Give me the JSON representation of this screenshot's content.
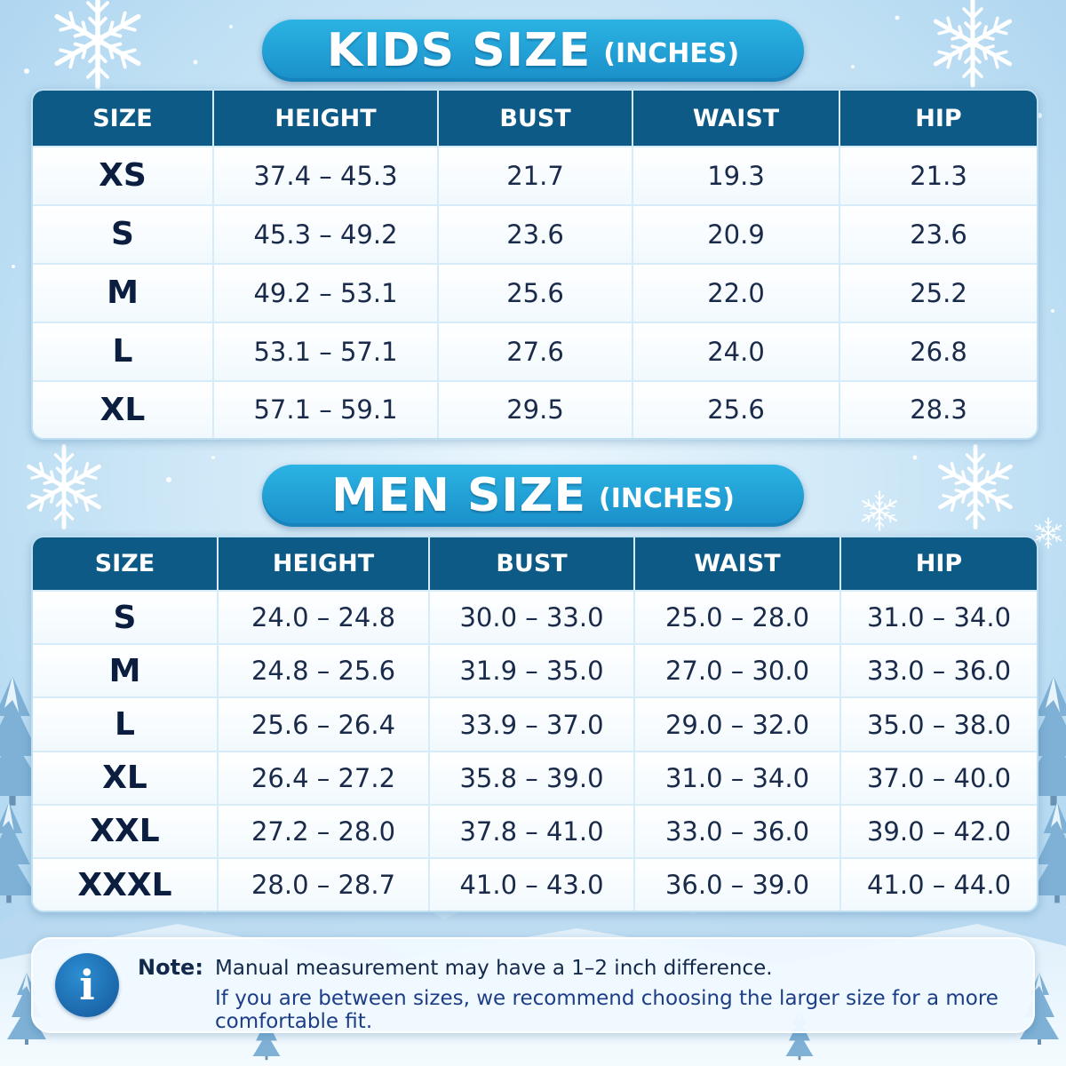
{
  "kids": {
    "title": "KIDS SIZE",
    "unit": "(INCHES)",
    "headers": [
      "SIZE",
      "HEIGHT",
      "BUST",
      "WAIST",
      "HIP"
    ],
    "rows": [
      [
        "XS",
        "37.4 – 45.3",
        "21.7",
        "19.3",
        "21.3"
      ],
      [
        "S",
        "45.3 – 49.2",
        "23.6",
        "20.9",
        "23.6"
      ],
      [
        "M",
        "49.2 – 53.1",
        "25.6",
        "22.0",
        "25.2"
      ],
      [
        "L",
        "53.1 – 57.1",
        "27.6",
        "24.0",
        "26.8"
      ],
      [
        "XL",
        "57.1 – 59.1",
        "29.5",
        "25.6",
        "28.3"
      ]
    ]
  },
  "men": {
    "title": "MEN SIZE",
    "unit": "(INCHES)",
    "headers": [
      "SIZE",
      "HEIGHT",
      "BUST",
      "WAIST",
      "HIP"
    ],
    "rows": [
      [
        "S",
        "24.0 – 24.8",
        "30.0 – 33.0",
        "25.0 – 28.0",
        "31.0 – 34.0"
      ],
      [
        "M",
        "24.8 – 25.6",
        "31.9 – 35.0",
        "27.0 – 30.0",
        "33.0 – 36.0"
      ],
      [
        "L",
        "25.6 – 26.4",
        "33.9 – 37.0",
        "29.0 – 32.0",
        "35.0 – 38.0"
      ],
      [
        "XL",
        "26.4 – 27.2",
        "35.8 – 39.0",
        "31.0 – 34.0",
        "37.0 – 40.0"
      ],
      [
        "XXL",
        "27.2 – 28.0",
        "37.8 – 41.0",
        "33.0 – 36.0",
        "39.0 – 42.0"
      ],
      [
        "XXXL",
        "28.0 – 28.7",
        "41.0 – 43.0",
        "36.0 – 39.0",
        "41.0 – 44.0"
      ]
    ]
  },
  "note": {
    "icon": "info-icon",
    "icon_glyph": "i",
    "label": "Note:",
    "line1": "Manual measurement may have a 1–2 inch difference.",
    "line2": "If you are between sizes, we recommend choosing the larger size for a more comfortable fit."
  },
  "colors": {
    "header_bg": "#0e5a86",
    "title_pill": "#1a8fc9",
    "text_dark": "#0b1e40",
    "background": "#cfe8f7"
  }
}
